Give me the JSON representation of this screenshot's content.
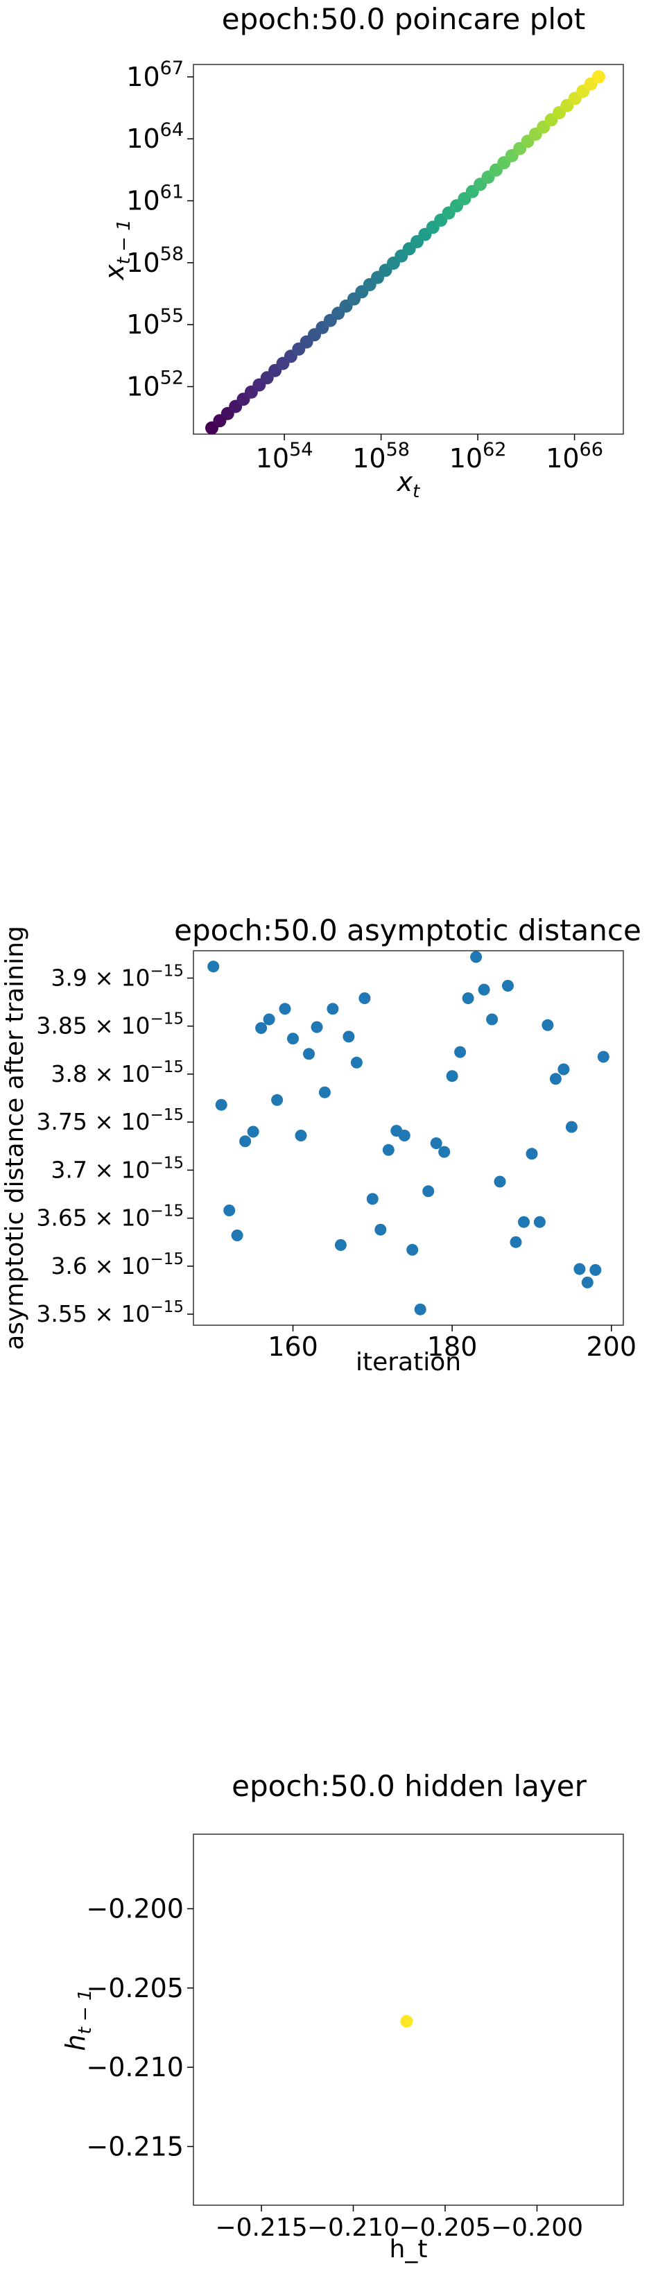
{
  "chart_data": [
    {
      "type": "scatter",
      "title": "epoch:50.0 poincare plot",
      "xlabel": "x",
      "xlabel_sub": "t",
      "ylabel": "x",
      "ylabel_sub": "t − 1",
      "xscale": "log",
      "yscale": "log",
      "xlim_exp": [
        50.24,
        68.02
      ],
      "ylim_exp": [
        49.7,
        67.6
      ],
      "x_tick_exps": [
        54,
        58,
        62,
        66
      ],
      "y_tick_exps": [
        52,
        55,
        58,
        61,
        64,
        67
      ],
      "tick_base": "10",
      "colormap": "viridis",
      "grid": false,
      "points_log10": {
        "x_start": 51.0,
        "x_end": 67.0,
        "y_start": 50.0,
        "y_end": 67.0,
        "count": 50
      }
    },
    {
      "type": "scatter",
      "title": "epoch:50.0 asymptotic distance",
      "xlabel": "iteration",
      "ylabel": "asymptotic distance after training",
      "xlim": [
        147.5,
        201.5
      ],
      "ylim": [
        3.5385,
        3.9285
      ],
      "x_ticks": [
        160,
        180,
        200
      ],
      "y_ticks": [
        {
          "mantissa": "3.55",
          "value": 3.55
        },
        {
          "mantissa": "3.6",
          "value": 3.6
        },
        {
          "mantissa": "3.65",
          "value": 3.65
        },
        {
          "mantissa": "3.7",
          "value": 3.7
        },
        {
          "mantissa": "3.75",
          "value": 3.75
        },
        {
          "mantissa": "3.8",
          "value": 3.8
        },
        {
          "mantissa": "3.85",
          "value": 3.85
        },
        {
          "mantissa": "3.9",
          "value": 3.9
        }
      ],
      "y_tick_suffix": "× 10",
      "y_tick_exp": "−15",
      "y_unit_multiplier": "1e-15",
      "color": "#1f77b4",
      "grid": false,
      "x": [
        150,
        151,
        152,
        153,
        154,
        155,
        156,
        157,
        158,
        159,
        160,
        161,
        162,
        163,
        164,
        165,
        166,
        167,
        168,
        169,
        170,
        171,
        172,
        173,
        174,
        175,
        176,
        177,
        178,
        179,
        180,
        181,
        182,
        183,
        184,
        185,
        186,
        187,
        188,
        189,
        190,
        191,
        192,
        193,
        194,
        195,
        196,
        197,
        198,
        199
      ],
      "y": [
        3.912,
        3.768,
        3.658,
        3.632,
        3.73,
        3.74,
        3.848,
        3.857,
        3.773,
        3.868,
        3.837,
        3.736,
        3.821,
        3.849,
        3.781,
        3.868,
        3.622,
        3.839,
        3.812,
        3.879,
        3.67,
        3.638,
        3.721,
        3.741,
        3.736,
        3.617,
        3.555,
        3.678,
        3.728,
        3.719,
        3.798,
        3.823,
        3.879,
        3.922,
        3.888,
        3.857,
        3.688,
        3.892,
        3.625,
        3.646,
        3.717,
        3.646,
        3.851,
        3.795,
        3.805,
        3.745,
        3.597,
        3.583,
        3.596,
        3.818
      ]
    },
    {
      "type": "scatter",
      "title": "epoch:50.0 hidden layer",
      "xlabel": "h_t",
      "ylabel": "h",
      "ylabel_sub": "t − 1",
      "xlim": [
        -0.2187,
        -0.1953
      ],
      "ylim": [
        -0.2187,
        -0.1953
      ],
      "x_ticks": [
        {
          "label": "−0.215",
          "value": -0.215
        },
        {
          "label": "−0.210",
          "value": -0.21
        },
        {
          "label": "−0.205",
          "value": -0.205
        },
        {
          "label": "−0.200",
          "value": -0.2
        }
      ],
      "y_ticks": [
        {
          "label": "−0.200",
          "value": -0.2
        },
        {
          "label": "−0.205",
          "value": -0.205
        },
        {
          "label": "−0.210",
          "value": -0.21
        },
        {
          "label": "−0.215",
          "value": -0.215
        }
      ],
      "color": "#fde725",
      "grid": false,
      "x": [
        -0.2071
      ],
      "y": [
        -0.2071
      ]
    }
  ]
}
